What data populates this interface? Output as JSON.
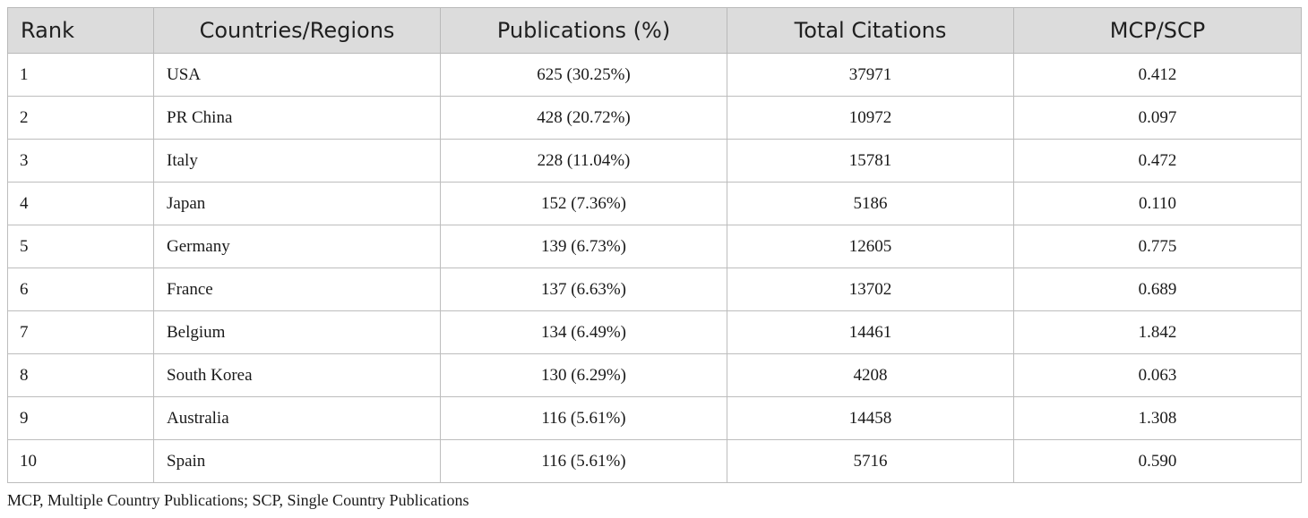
{
  "table": {
    "headers": [
      "Rank",
      "Countries/Regions",
      "Publications (%)",
      "Total Citations",
      "MCP/SCP"
    ],
    "rows": [
      [
        "1",
        "USA",
        "625 (30.25%)",
        "37971",
        "0.412"
      ],
      [
        "2",
        "PR China",
        "428 (20.72%)",
        "10972",
        "0.097"
      ],
      [
        "3",
        "Italy",
        "228 (11.04%)",
        "15781",
        "0.472"
      ],
      [
        "4",
        "Japan",
        "152 (7.36%)",
        "5186",
        "0.110"
      ],
      [
        "5",
        "Germany",
        "139 (6.73%)",
        "12605",
        "0.775"
      ],
      [
        "6",
        "France",
        "137 (6.63%)",
        "13702",
        "0.689"
      ],
      [
        "7",
        "Belgium",
        "134 (6.49%)",
        "14461",
        "1.842"
      ],
      [
        "8",
        "South Korea",
        "130 (6.29%)",
        "4208",
        "0.063"
      ],
      [
        "9",
        "Australia",
        "116 (5.61%)",
        "14458",
        "1.308"
      ],
      [
        "10",
        "Spain",
        "116 (5.61%)",
        "5716",
        "0.590"
      ]
    ]
  },
  "footnote": "MCP, Multiple Country Publications; SCP, Single Country Publications",
  "colors": {
    "header_background": "#dcdcdc",
    "border": "#bdbdbd",
    "text": "#1a1a1a"
  }
}
